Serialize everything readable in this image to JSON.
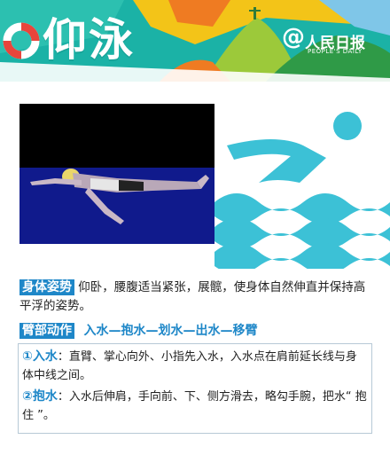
{
  "header": {
    "title": "仰泳",
    "logo_name": "人民日报",
    "logo_sub": "PEOPLE'S DAILY",
    "logo_at": "@"
  },
  "icons": [
    "life-ring-icon",
    "swimmer-icon"
  ],
  "colors": {
    "header_teal": "#19b6a8",
    "accent_blue": "#1e87c8",
    "wave_cyan": "#3cc1d6"
  },
  "posture": {
    "label": "身体姿势",
    "text": "仰卧，腰腹适当紧张，展髋，使身体自然伸直并保持高平浮的姿势。"
  },
  "arm": {
    "label": "臂部动作",
    "steps": "入水—抱水—划水—出水—移臂"
  },
  "steps": [
    {
      "num": "①",
      "title": "入水",
      "sep": "：",
      "text": "直臂、掌心向外、小指先入水，入水点在肩前延长线与身体中线之间。"
    },
    {
      "num": "②",
      "title": "抱水",
      "sep": "：",
      "text": "入水后伸肩，手向前、下、侧方滑去，略勾手腕，把水“ 抱住 ”。"
    }
  ]
}
